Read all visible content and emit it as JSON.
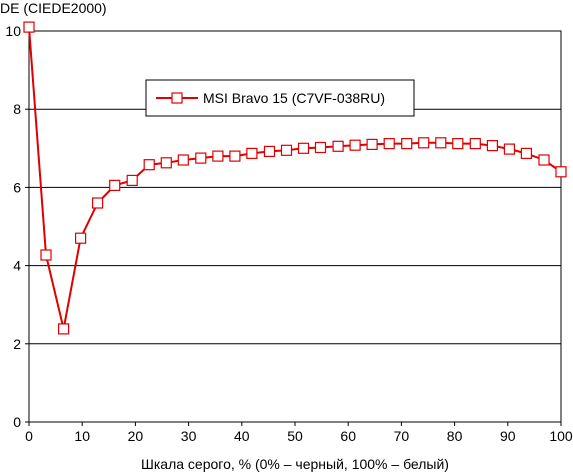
{
  "chart_data": {
    "type": "line",
    "ylabel": "DE (CIEDE2000)",
    "xlabel": "Шкала серого, % (0% – черный, 100% – белый)",
    "xlim": [
      0,
      100
    ],
    "ylim": [
      0,
      10
    ],
    "x_ticks": [
      "0",
      "10",
      "20",
      "30",
      "40",
      "50",
      "60",
      "70",
      "80",
      "90",
      "100"
    ],
    "y_ticks": [
      "0",
      "2",
      "4",
      "6",
      "8",
      "10"
    ],
    "grid": "horizontal",
    "legend_position": "top-center",
    "series": [
      {
        "name": "MSI Bravo 15 (C7VF-038RU)",
        "color": "#e00000",
        "marker": "open-square",
        "x": [
          0,
          3.2,
          6.5,
          9.7,
          12.9,
          16.1,
          19.4,
          22.6,
          25.8,
          29.0,
          32.3,
          35.5,
          38.7,
          41.9,
          45.2,
          48.4,
          51.6,
          54.8,
          58.1,
          61.3,
          64.5,
          67.7,
          71.0,
          74.2,
          77.4,
          80.6,
          83.9,
          87.1,
          90.3,
          93.5,
          96.8,
          100
        ],
        "y": [
          10.1,
          4.27,
          2.38,
          4.7,
          5.6,
          6.05,
          6.18,
          6.58,
          6.63,
          6.7,
          6.75,
          6.8,
          6.8,
          6.87,
          6.92,
          6.95,
          7.0,
          7.02,
          7.05,
          7.08,
          7.1,
          7.12,
          7.12,
          7.14,
          7.14,
          7.12,
          7.12,
          7.07,
          6.98,
          6.87,
          6.7,
          6.4
        ]
      }
    ]
  }
}
